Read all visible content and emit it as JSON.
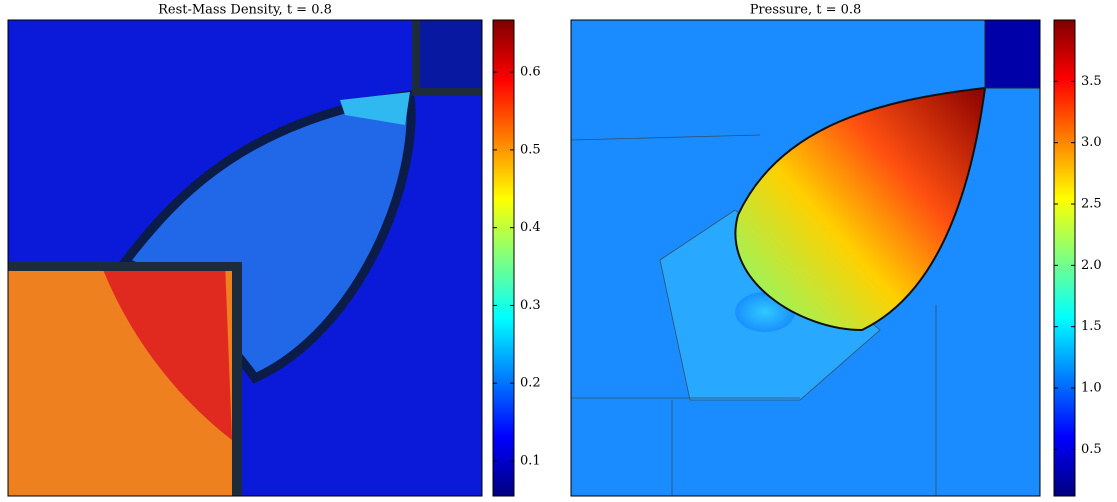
{
  "chart_data": [
    {
      "type": "heatmap",
      "title": "Rest-Mass Density, t = 0.8",
      "colormap": "jet",
      "ylim": [
        0.055,
        0.667
      ],
      "yticks": [
        0.1,
        0.2,
        0.3,
        0.4,
        0.5,
        0.6
      ]
    },
    {
      "type": "heatmap",
      "title": "Pressure, t = 0.8",
      "colormap": "jet",
      "ylim": [
        0.12,
        4.0
      ],
      "yticks": [
        0.5,
        {
          "value": 1,
          "label": "1.0"
        },
        1.5,
        {
          "value": 2,
          "label": "2.0"
        },
        2.5,
        {
          "value": 3,
          "label": "3.0"
        },
        3.5
      ]
    }
  ]
}
